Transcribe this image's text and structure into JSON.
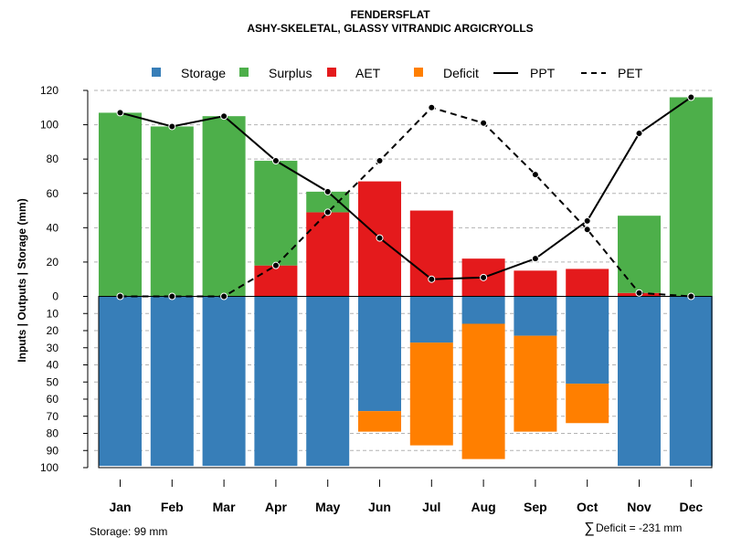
{
  "chart_data": {
    "type": "bar",
    "title": "FENDERSFLAT",
    "subtitle": "ASHY-SKELETAL, GLASSY VITRANDIC ARGICRYOLLS",
    "ylabel": "Inputs | Outputs | Storage    (mm)",
    "categories": [
      "Jan",
      "Feb",
      "Mar",
      "Apr",
      "May",
      "Jun",
      "Jul",
      "Aug",
      "Sep",
      "Oct",
      "Nov",
      "Dec"
    ],
    "upper_ylim": [
      0,
      120
    ],
    "upper_ticks": [
      "0",
      "20",
      "40",
      "60",
      "80",
      "100",
      "120"
    ],
    "lower_ylim": [
      0,
      100
    ],
    "lower_ticks": [
      "0",
      "10",
      "20",
      "30",
      "40",
      "50",
      "60",
      "70",
      "80",
      "90",
      "100"
    ],
    "series": [
      {
        "name": "Storage",
        "color": "#377EB8",
        "values": [
          99,
          99,
          99,
          99,
          99,
          67,
          27,
          16,
          23,
          51,
          99,
          99
        ]
      },
      {
        "name": "Surplus",
        "color": "#4DAF4A",
        "values": [
          107,
          99,
          105,
          61,
          12,
          0,
          0,
          0,
          0,
          0,
          45,
          116
        ]
      },
      {
        "name": "AET",
        "color": "#E41A1C",
        "values": [
          0,
          0,
          0,
          18,
          49,
          67,
          50,
          22,
          15,
          16,
          2,
          0
        ]
      },
      {
        "name": "Deficit",
        "color": "#FF7F00",
        "values": [
          0,
          0,
          0,
          0,
          0,
          12,
          60,
          79,
          56,
          23,
          0,
          0
        ]
      },
      {
        "name": "PPT",
        "color": "#000000",
        "style": "solid",
        "values": [
          107,
          99,
          105,
          79,
          61,
          34,
          10,
          11,
          22,
          44,
          95,
          116
        ]
      },
      {
        "name": "PET",
        "color": "#000000",
        "style": "dashed",
        "values": [
          0,
          0,
          0,
          18,
          49,
          79,
          110,
          101,
          71,
          39,
          2,
          0
        ]
      }
    ],
    "legend": [
      "Storage",
      "Surplus",
      "AET",
      "Deficit",
      "PPT",
      "PET"
    ],
    "legend_position": "top",
    "grid": true
  },
  "footer": {
    "storage_note": "Storage: 99 mm",
    "deficit_symbol": "∑",
    "deficit_note": "Deficit = -231 mm"
  }
}
